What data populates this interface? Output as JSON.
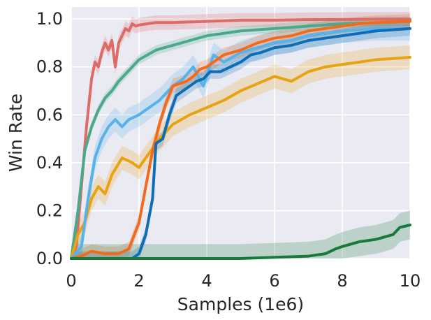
{
  "chart_data": {
    "type": "line",
    "title": "",
    "xlabel": "Samples (1e6)",
    "ylabel": "Win Rate",
    "xlim": [
      0,
      10
    ],
    "ylim": [
      0,
      1.05
    ],
    "xticks": [
      0,
      2,
      4,
      6,
      8,
      10
    ],
    "xtick_labels": [
      "0",
      "2",
      "4",
      "6",
      "8",
      "10"
    ],
    "yticks": [
      0,
      0.2,
      0.4,
      0.6,
      0.8,
      1.0
    ],
    "ytick_labels": [
      "0.0",
      "0.2",
      "0.4",
      "0.6",
      "0.8",
      "1.0"
    ],
    "grid": true,
    "background": "#eaeaf2",
    "legend": "none",
    "series": [
      {
        "color": "#dd6b66",
        "band": 0.03,
        "x": [
          0,
          0.15,
          0.3,
          0.45,
          0.6,
          0.7,
          0.8,
          0.9,
          1.0,
          1.1,
          1.2,
          1.3,
          1.4,
          1.5,
          1.6,
          1.7,
          1.8,
          1.9,
          2.0,
          2.5,
          3.0,
          4.0,
          5.0,
          6.0,
          7.0,
          8.0,
          9.0,
          10.0
        ],
        "y": [
          0.0,
          0.05,
          0.3,
          0.55,
          0.75,
          0.82,
          0.8,
          0.86,
          0.9,
          0.87,
          0.91,
          0.8,
          0.9,
          0.93,
          0.96,
          0.95,
          0.98,
          0.97,
          0.975,
          0.985,
          0.985,
          0.99,
          0.995,
          0.995,
          0.997,
          0.998,
          0.999,
          0.999
        ]
      },
      {
        "color": "#4aa98a",
        "band": 0.02,
        "x": [
          0,
          0.2,
          0.4,
          0.6,
          0.8,
          1.0,
          1.2,
          1.4,
          1.6,
          1.8,
          2.0,
          2.5,
          3.0,
          3.5,
          4.0,
          4.5,
          5.0,
          6.0,
          7.0,
          8.0,
          9.0,
          10.0
        ],
        "y": [
          0.0,
          0.2,
          0.45,
          0.55,
          0.62,
          0.67,
          0.7,
          0.74,
          0.77,
          0.8,
          0.83,
          0.87,
          0.89,
          0.91,
          0.93,
          0.94,
          0.95,
          0.96,
          0.97,
          0.98,
          0.985,
          0.99
        ]
      },
      {
        "color": "#e8a212",
        "band": 0.05,
        "x": [
          0,
          0.2,
          0.4,
          0.6,
          0.8,
          1.0,
          1.2,
          1.5,
          1.8,
          2.0,
          2.3,
          2.6,
          3.0,
          3.5,
          4.0,
          4.5,
          5.0,
          5.5,
          6.0,
          6.5,
          7.0,
          7.5,
          8.0,
          8.5,
          9.0,
          9.5,
          10.0
        ],
        "y": [
          0.0,
          0.1,
          0.15,
          0.25,
          0.3,
          0.27,
          0.35,
          0.42,
          0.4,
          0.38,
          0.44,
          0.5,
          0.56,
          0.6,
          0.63,
          0.66,
          0.7,
          0.73,
          0.76,
          0.74,
          0.78,
          0.8,
          0.81,
          0.82,
          0.83,
          0.835,
          0.84
        ]
      },
      {
        "color": "#56b2e8",
        "band": 0.05,
        "x": [
          0,
          0.3,
          0.5,
          0.7,
          0.9,
          1.1,
          1.3,
          1.5,
          1.7,
          2.0,
          2.3,
          2.6,
          3.0,
          3.3,
          3.6,
          3.9,
          4.2,
          4.5,
          5.0,
          5.5,
          6.0,
          6.5,
          7.0,
          7.5,
          8.0,
          8.5,
          9.0,
          10.0
        ],
        "y": [
          0.0,
          0.05,
          0.25,
          0.42,
          0.5,
          0.55,
          0.58,
          0.55,
          0.58,
          0.6,
          0.63,
          0.66,
          0.72,
          0.75,
          0.8,
          0.72,
          0.85,
          0.82,
          0.86,
          0.88,
          0.9,
          0.91,
          0.93,
          0.94,
          0.95,
          0.955,
          0.96,
          0.96
        ]
      },
      {
        "color": "#f26b1d",
        "band": 0.03,
        "x": [
          0,
          0.3,
          0.6,
          1.0,
          1.4,
          1.7,
          2.0,
          2.2,
          2.4,
          2.6,
          2.8,
          3.0,
          3.2,
          3.4,
          3.6,
          3.8,
          4.0,
          4.2,
          4.5,
          5.0,
          5.5,
          6.0,
          6.5,
          7.0,
          7.5,
          8.0,
          8.5,
          9.0,
          10.0
        ],
        "y": [
          0.0,
          0.01,
          0.03,
          0.02,
          0.02,
          0.04,
          0.15,
          0.3,
          0.45,
          0.56,
          0.65,
          0.72,
          0.73,
          0.74,
          0.76,
          0.79,
          0.8,
          0.82,
          0.85,
          0.87,
          0.9,
          0.92,
          0.93,
          0.95,
          0.96,
          0.97,
          0.98,
          0.985,
          0.99
        ]
      },
      {
        "color": "#0f6db3",
        "band": 0.03,
        "x": [
          0,
          1.8,
          2.0,
          2.2,
          2.4,
          2.5,
          2.7,
          2.9,
          3.1,
          3.3,
          3.5,
          3.7,
          3.9,
          4.1,
          4.4,
          4.7,
          5.0,
          5.3,
          5.6,
          6.0,
          6.5,
          7.0,
          7.5,
          8.0,
          8.5,
          9.0,
          9.5,
          10.0
        ],
        "y": [
          0.0,
          0.0,
          0.02,
          0.1,
          0.25,
          0.48,
          0.5,
          0.6,
          0.68,
          0.7,
          0.72,
          0.74,
          0.75,
          0.78,
          0.78,
          0.8,
          0.82,
          0.85,
          0.86,
          0.88,
          0.89,
          0.91,
          0.92,
          0.93,
          0.94,
          0.95,
          0.955,
          0.96
        ]
      },
      {
        "color": "#167a3a",
        "band": 0.06,
        "x": [
          0,
          5.0,
          6.0,
          7.0,
          7.5,
          7.8,
          8.0,
          8.5,
          9.0,
          9.5,
          9.7,
          10.0
        ],
        "y": [
          0.0,
          0.0,
          0.005,
          0.01,
          0.02,
          0.04,
          0.05,
          0.07,
          0.08,
          0.1,
          0.13,
          0.14
        ]
      }
    ]
  }
}
